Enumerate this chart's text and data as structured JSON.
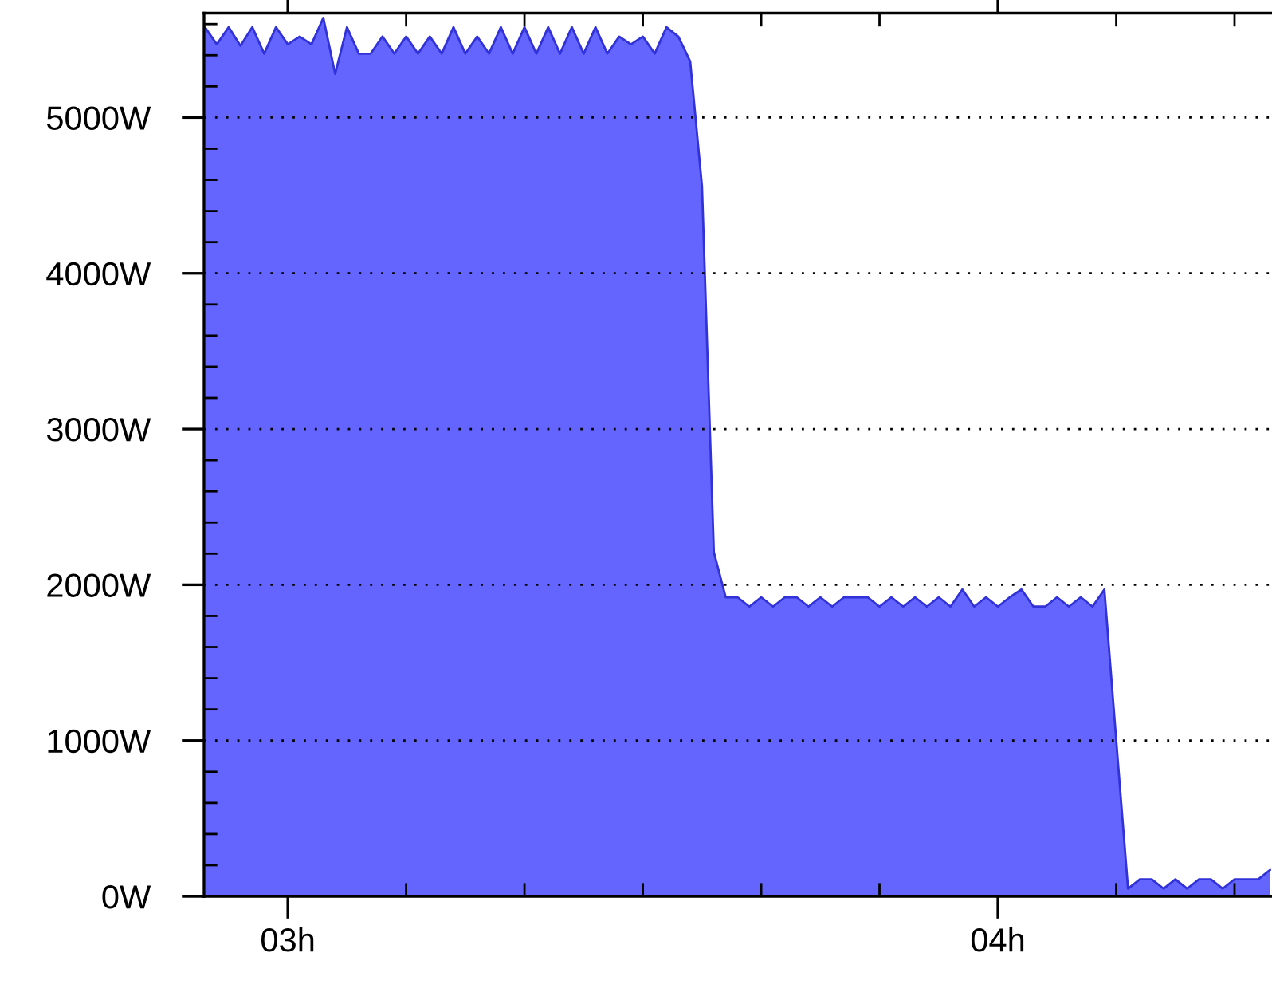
{
  "chart_data": {
    "type": "area",
    "x": [
      2.8833,
      2.9,
      2.9167,
      2.9333,
      2.95,
      2.9667,
      2.9833,
      3,
      3.0167,
      3.0333,
      3.05,
      3.0667,
      3.0833,
      3.1,
      3.1167,
      3.1333,
      3.15,
      3.1667,
      3.1833,
      3.2,
      3.2167,
      3.2333,
      3.25,
      3.2667,
      3.2833,
      3.3,
      3.3167,
      3.3333,
      3.35,
      3.3667,
      3.3833,
      3.4,
      3.4167,
      3.4333,
      3.45,
      3.4667,
      3.4833,
      3.5,
      3.5167,
      3.5333,
      3.55,
      3.5667,
      3.5833,
      3.6,
      3.6167,
      3.6333,
      3.65,
      3.6667,
      3.6833,
      3.7,
      3.7167,
      3.7333,
      3.75,
      3.7667,
      3.7833,
      3.8,
      3.8167,
      3.8333,
      3.85,
      3.8667,
      3.8833,
      3.9,
      3.9167,
      3.9333,
      3.95,
      3.9667,
      3.9833,
      4,
      4.0167,
      4.0333,
      4.05,
      4.0667,
      4.0833,
      4.1,
      4.1167,
      4.1333,
      4.15,
      4.1667,
      4.1833,
      4.2,
      4.2167,
      4.2333,
      4.25,
      4.2667,
      4.2833,
      4.3,
      4.3167,
      4.3333,
      4.35,
      4.3667,
      4.3833
    ],
    "series": [
      {
        "color": "#6464ff",
        "values": [
          5580,
          5470,
          5580,
          5460,
          5580,
          5410,
          5580,
          5470,
          5520,
          5470,
          5640,
          5280,
          5580,
          5410,
          5410,
          5520,
          5410,
          5520,
          5410,
          5520,
          5410,
          5580,
          5410,
          5520,
          5410,
          5580,
          5410,
          5580,
          5410,
          5580,
          5410,
          5580,
          5410,
          5580,
          5410,
          5520,
          5470,
          5520,
          5410,
          5580,
          5520,
          5360,
          4560,
          2210,
          1920,
          1920,
          1860,
          1920,
          1860,
          1920,
          1920,
          1860,
          1920,
          1860,
          1920,
          1920,
          1920,
          1860,
          1920,
          1860,
          1920,
          1860,
          1920,
          1860,
          1970,
          1860,
          1920,
          1860,
          1920,
          1970,
          1860,
          1860,
          1920,
          1860,
          1920,
          1860,
          1970,
          1000,
          50,
          110,
          110,
          50,
          110,
          50,
          110,
          110,
          50,
          110,
          110,
          110,
          170
        ]
      }
    ],
    "xlim": [
      2.882,
      4.385
    ],
    "xticks": [
      {
        "value": 3,
        "label": "03h"
      },
      {
        "value": 3.1667,
        "label": null
      },
      {
        "value": 3.3333,
        "label": null
      },
      {
        "value": 3.5,
        "label": null
      },
      {
        "value": 3.6667,
        "label": null
      },
      {
        "value": 3.8333,
        "label": null
      },
      {
        "value": 4,
        "label": "04h"
      },
      {
        "value": 4.1667,
        "label": null
      },
      {
        "value": 4.3333,
        "label": null
      }
    ],
    "ylim": [
      0,
      5670
    ],
    "yticks": [
      {
        "value": 0,
        "label": "0W"
      },
      {
        "value": 200,
        "label": null
      },
      {
        "value": 400,
        "label": null
      },
      {
        "value": 600,
        "label": null
      },
      {
        "value": 800,
        "label": null
      },
      {
        "value": 1000,
        "label": "1000W"
      },
      {
        "value": 1200,
        "label": null
      },
      {
        "value": 1400,
        "label": null
      },
      {
        "value": 1600,
        "label": null
      },
      {
        "value": 1800,
        "label": null
      },
      {
        "value": 2000,
        "label": "2000W"
      },
      {
        "value": 2200,
        "label": null
      },
      {
        "value": 2400,
        "label": null
      },
      {
        "value": 2600,
        "label": null
      },
      {
        "value": 2800,
        "label": null
      },
      {
        "value": 3000,
        "label": "3000W"
      },
      {
        "value": 3200,
        "label": null
      },
      {
        "value": 3400,
        "label": null
      },
      {
        "value": 3600,
        "label": null
      },
      {
        "value": 3800,
        "label": null
      },
      {
        "value": 4000,
        "label": "4000W"
      },
      {
        "value": 4200,
        "label": null
      },
      {
        "value": 4400,
        "label": null
      },
      {
        "value": 4600,
        "label": null
      },
      {
        "value": 4800,
        "label": null
      },
      {
        "value": 5000,
        "label": "5000W"
      },
      {
        "value": 5200,
        "label": null
      },
      {
        "value": 5400,
        "label": null
      },
      {
        "value": 5600,
        "label": null
      }
    ],
    "grid": "y"
  }
}
